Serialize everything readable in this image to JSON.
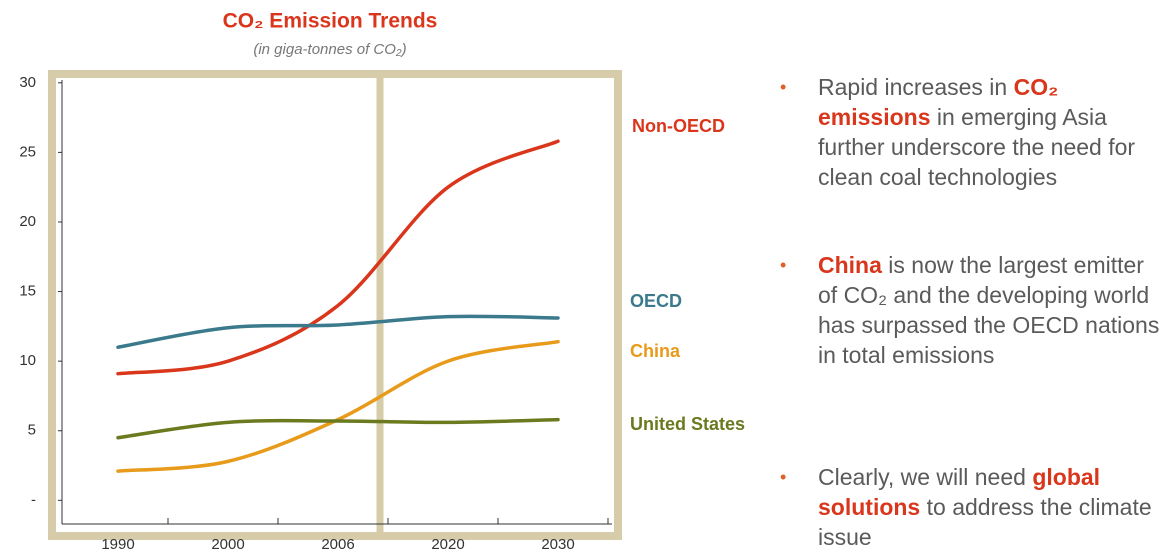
{
  "chart_data": {
    "type": "line",
    "title": "CO₂ Emission Trends",
    "subtitle": "(in giga-tonnes of CO₂)",
    "categories": [
      "1990",
      "2000",
      "2006",
      "2020",
      "2030"
    ],
    "series": [
      {
        "name": "Non-OECD",
        "color": "#d9361c",
        "values": [
          9.1,
          10,
          14,
          22.5,
          25.8
        ]
      },
      {
        "name": "OECD",
        "color": "#3b7a8c",
        "values": [
          11,
          12.4,
          12.6,
          13.2,
          13.1
        ]
      },
      {
        "name": "China",
        "color": "#e89a1a",
        "values": [
          2.1,
          2.8,
          5.8,
          10,
          11.4
        ]
      },
      {
        "name": "United States",
        "color": "#6b7a1f",
        "values": [
          4.5,
          5.6,
          5.7,
          5.6,
          5.8
        ]
      }
    ],
    "ylim": [
      -1.7,
      30.2
    ],
    "yticks": [
      {
        "value": 0,
        "label": "-"
      },
      5,
      10,
      15,
      20,
      25,
      30
    ],
    "grid": false
  },
  "bullets": [
    [
      {
        "text": "Rapid increases in "
      },
      {
        "text": "CO₂ emissions",
        "highlight": true
      },
      {
        "text": " in emerging Asia further underscore the need for clean coal technologies"
      }
    ],
    [
      {
        "text": "China",
        "highlight": true
      },
      {
        "text": " is now the largest emitter of CO₂ and the developing world has surpassed the OECD nations in total emissions"
      }
    ],
    [
      {
        "text": "Clearly, we will need "
      },
      {
        "text": "global solutions",
        "highlight": true
      },
      {
        "text": " to address the climate issue"
      }
    ]
  ]
}
